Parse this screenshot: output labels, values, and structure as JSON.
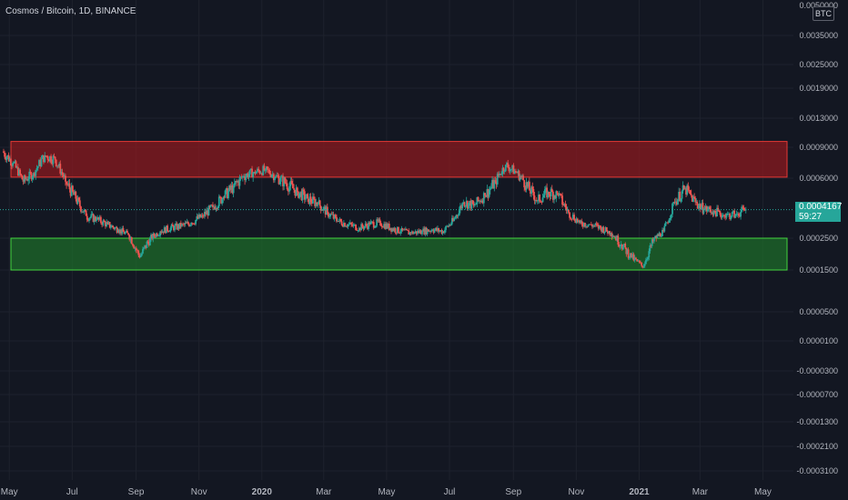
{
  "header": {
    "title": "Cosmos / Bitcoin, 1D, BINANCE",
    "currency_badge": "BTC"
  },
  "price_tag": {
    "price": "0.0004167",
    "countdown": "59:27",
    "color": "#26a69a"
  },
  "colors": {
    "background": "#131722",
    "grid": "#1e222d",
    "up": "#26a69a",
    "down": "#ef5350",
    "resistance_zone": "#8b1a1f",
    "support_zone": "#1d6b2a",
    "text": "#b2b5be"
  },
  "chart_data": {
    "type": "candlestick",
    "title": "Cosmos / Bitcoin, 1D, BINANCE",
    "y_axis": {
      "ticks": [
        "0.0035000",
        "0.0025000",
        "0.0019000",
        "0.0013000",
        "0.0009000",
        "0.0006000",
        "0.0002500",
        "0.0001500",
        "0.0000500",
        "0.0000100",
        "-0.0000300",
        "-0.0000700",
        "-0.0001300",
        "-0.0002100",
        "-0.0003100"
      ],
      "top_partial_label": "0.0050000",
      "scale": "custom"
    },
    "x_axis": {
      "ticks": [
        "May",
        "Jul",
        "Sep",
        "Nov",
        "2020",
        "Mar",
        "May",
        "Jul",
        "Sep",
        "Nov",
        "2021",
        "Mar",
        "May"
      ],
      "bold_ticks": [
        "2020",
        "2021"
      ],
      "range": [
        "2019-04-22",
        "2021-05-20"
      ]
    },
    "close_series": {
      "dates": [
        "2019-04-25",
        "2019-05-05",
        "2019-05-15",
        "2019-05-25",
        "2019-06-05",
        "2019-06-15",
        "2019-06-25",
        "2019-07-05",
        "2019-07-15",
        "2019-07-25",
        "2019-08-05",
        "2019-08-15",
        "2019-08-25",
        "2019-09-05",
        "2019-09-15",
        "2019-09-25",
        "2019-10-05",
        "2019-10-15",
        "2019-10-25",
        "2019-11-05",
        "2019-11-15",
        "2019-11-25",
        "2019-12-05",
        "2019-12-15",
        "2019-12-25",
        "2020-01-05",
        "2020-01-15",
        "2020-01-25",
        "2020-02-05",
        "2020-02-15",
        "2020-02-25",
        "2020-03-05",
        "2020-03-15",
        "2020-03-25",
        "2020-04-05",
        "2020-04-15",
        "2020-04-25",
        "2020-05-05",
        "2020-05-15",
        "2020-05-25",
        "2020-06-05",
        "2020-06-15",
        "2020-06-25",
        "2020-07-05",
        "2020-07-15",
        "2020-07-25",
        "2020-08-05",
        "2020-08-15",
        "2020-08-25",
        "2020-09-05",
        "2020-09-15",
        "2020-09-25",
        "2020-10-05",
        "2020-10-15",
        "2020-10-25",
        "2020-11-05",
        "2020-11-15",
        "2020-11-25",
        "2020-12-05",
        "2020-12-15",
        "2020-12-25",
        "2021-01-05",
        "2021-01-15",
        "2021-01-25",
        "2021-02-05",
        "2021-02-15",
        "2021-02-25",
        "2021-03-05",
        "2021-03-15",
        "2021-03-25",
        "2021-04-05",
        "2021-04-15"
      ],
      "values": [
        0.00086,
        0.00075,
        0.00058,
        0.00065,
        0.00082,
        0.00078,
        0.00058,
        0.00048,
        0.00038,
        0.00036,
        0.00033,
        0.0003,
        0.00027,
        0.00019,
        0.00025,
        0.00029,
        0.00031,
        0.00032,
        0.00034,
        0.00038,
        0.00043,
        0.00049,
        0.00055,
        0.00062,
        0.00066,
        0.00068,
        0.00062,
        0.00057,
        0.00052,
        0.00048,
        0.00045,
        0.0004,
        0.00035,
        0.00033,
        0.00031,
        0.00033,
        0.00034,
        0.00031,
        0.00029,
        0.00028,
        0.00029,
        0.0003,
        0.00029,
        0.00035,
        0.00046,
        0.00044,
        0.0005,
        0.00058,
        0.00073,
        0.00065,
        0.00055,
        0.00047,
        0.00052,
        0.0005,
        0.0004,
        0.00034,
        0.00033,
        0.00031,
        0.00028,
        0.00023,
        0.00019,
        0.00016,
        0.00024,
        0.00029,
        0.00046,
        0.00054,
        0.00046,
        0.00042,
        0.00041,
        0.00038,
        0.00039,
        0.000417
      ]
    },
    "zones": [
      {
        "kind": "resistance",
        "from": 0.00061,
        "to": 0.00098,
        "start": "2019-04-22",
        "end": "2021-05-15"
      },
      {
        "kind": "support",
        "from": 0.00015,
        "to": 0.00025,
        "start": "2019-04-22",
        "end": "2021-05-15"
      }
    ],
    "last_price": 0.0004167
  }
}
